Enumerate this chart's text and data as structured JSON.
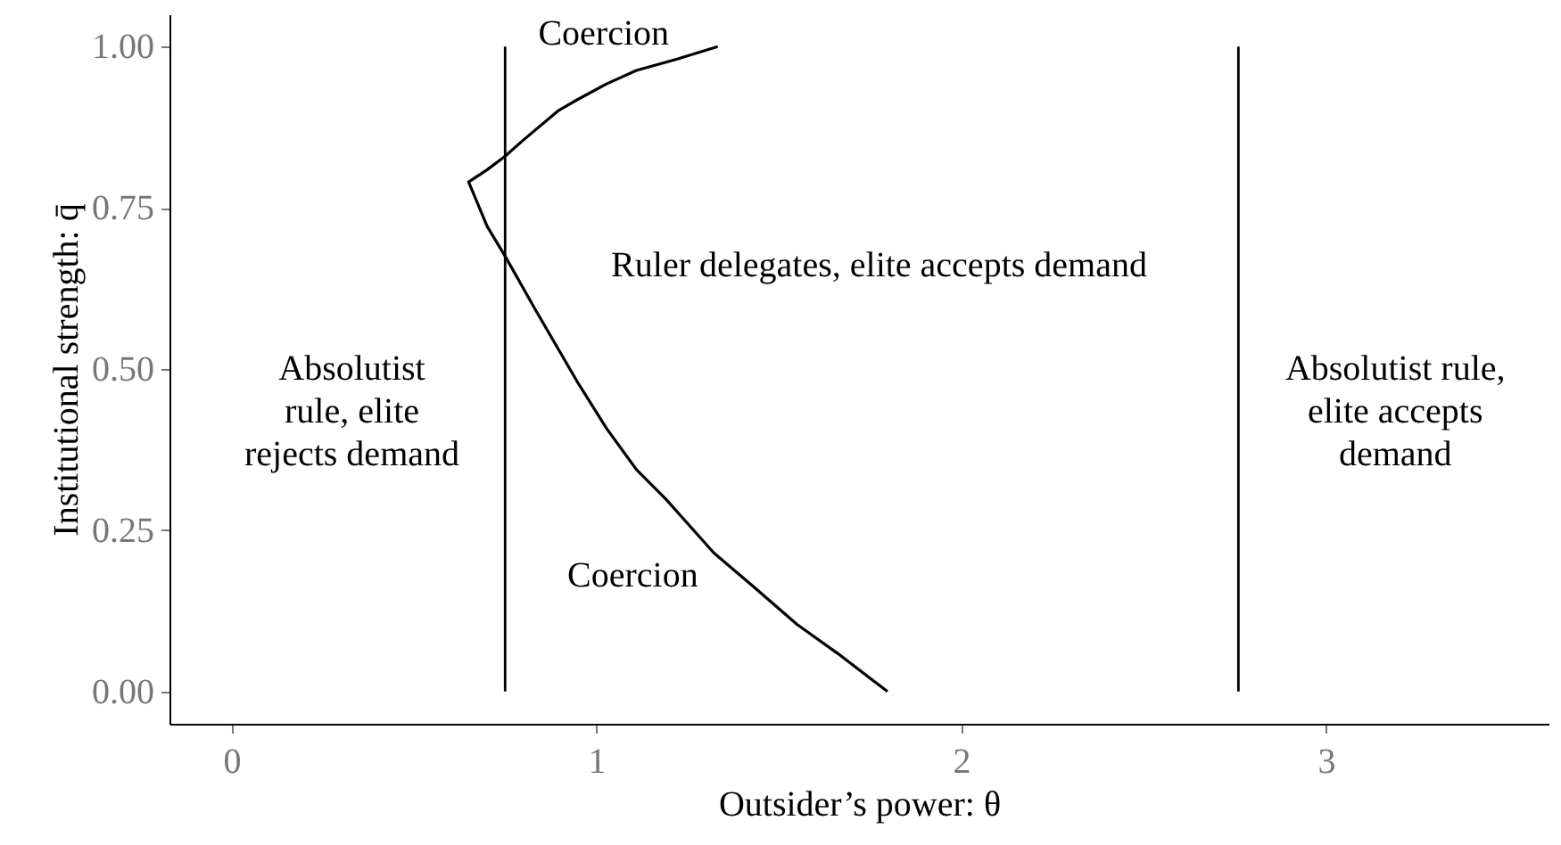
{
  "chart_data": {
    "type": "line",
    "xlabel": "Outsider’s power: θ",
    "ylabel": "Institutional strength: q̄",
    "xlim": [
      -0.17,
      3.61
    ],
    "xticks": [
      {
        "value": 0,
        "label": "0"
      },
      {
        "value": 1,
        "label": "1"
      },
      {
        "value": 2,
        "label": "2"
      },
      {
        "value": 3,
        "label": "3"
      }
    ],
    "ylim": [
      -0.05,
      1.05
    ],
    "yticks": [
      {
        "value": 0,
        "label": "0.00"
      },
      {
        "value": 0.25,
        "label": "0.25"
      },
      {
        "value": 0.5,
        "label": "0.50"
      },
      {
        "value": 0.75,
        "label": "0.75"
      },
      {
        "value": 1,
        "label": "1.00"
      }
    ],
    "grid": false,
    "series": [
      {
        "color": "#000000",
        "x": [
          1.333,
          1.224,
          1.11,
          1.028,
          0.946,
          0.897,
          0.8,
          0.75,
          0.701,
          0.65,
          0.701,
          0.75,
          0.832,
          0.946,
          1.028,
          1.11,
          1.191,
          1.322,
          1.436,
          1.55,
          1.664,
          1.798
        ],
        "values": [
          1.0,
          0.981,
          0.963,
          0.942,
          0.917,
          0.901,
          0.855,
          0.83,
          0.809,
          0.79,
          0.721,
          0.675,
          0.593,
          0.482,
          0.408,
          0.344,
          0.298,
          0.215,
          0.16,
          0.104,
          0.058,
          0.0
        ]
      }
    ],
    "ref_lines": [
      {
        "axis": "x",
        "value": 0.75,
        "color": "#000000"
      },
      {
        "axis": "x",
        "value": 2.76,
        "color": "#000000"
      }
    ],
    "annotations": [
      "Coercion",
      "Ruler delegates, elite accepts demand",
      "Absolutist\nrule, elite\nrejects demand",
      "Absolutist rule,\nelite accepts\ndemand",
      "Coercion"
    ]
  }
}
